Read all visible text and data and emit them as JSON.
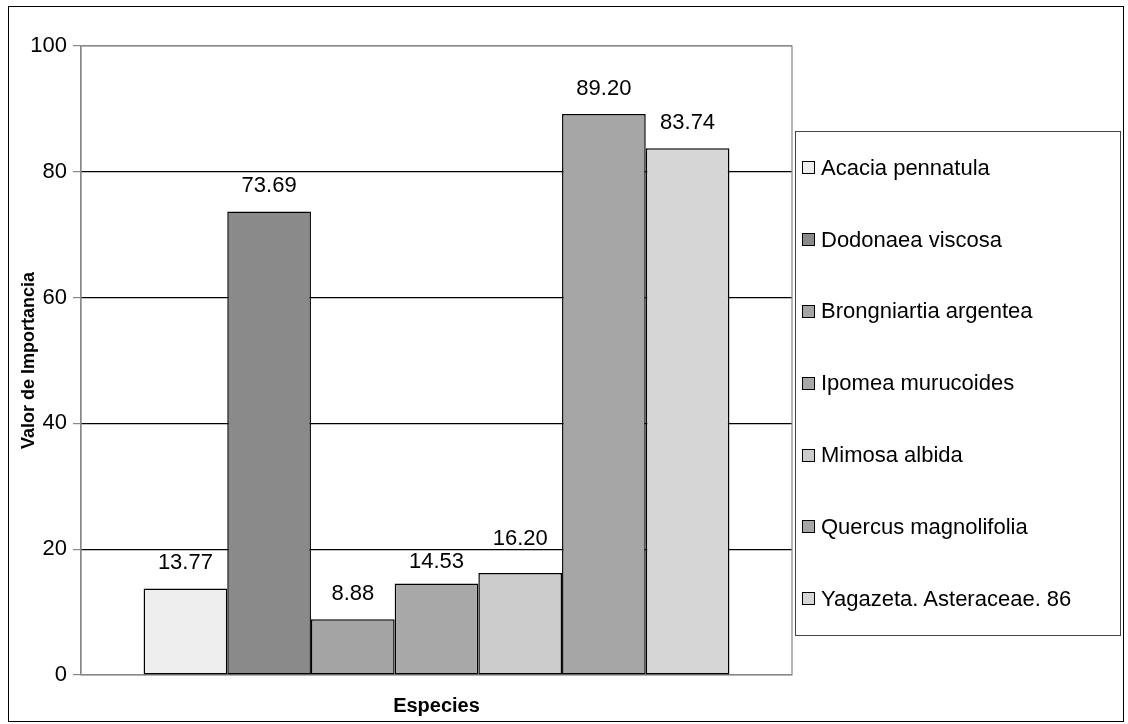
{
  "chart_data": {
    "type": "bar",
    "xlabel": "Especies",
    "ylabel": "Valor de Importancia",
    "categories": [
      null
    ],
    "series": [
      {
        "name": "Acacia pennatula",
        "color": "#eeeeee",
        "values": [
          13.77
        ],
        "value_labels": [
          "13.77"
        ]
      },
      {
        "name": "Dodonaea viscosa",
        "color": "#8a8a8a",
        "values": [
          73.69
        ],
        "value_labels": [
          "73.69"
        ]
      },
      {
        "name": "Brongniartia argentea",
        "color": "#a4a4a4",
        "values": [
          8.88
        ],
        "value_labels": [
          "8.88"
        ]
      },
      {
        "name": "Ipomea murucoides",
        "color": "#a8a8a8",
        "values": [
          14.53
        ],
        "value_labels": [
          "14.53"
        ]
      },
      {
        "name": "Mimosa albida",
        "color": "#cccccc",
        "values": [
          16.2
        ],
        "value_labels": [
          "16.20"
        ]
      },
      {
        "name": "Quercus magnolifolia",
        "color": "#a6a6a6",
        "values": [
          89.2
        ],
        "value_labels": [
          "89.20"
        ]
      },
      {
        "name": "Yagazeta. Asteraceae. 86",
        "color": "#d6d6d6",
        "values": [
          83.74
        ],
        "value_labels": [
          "83.74"
        ]
      }
    ],
    "ylim": [
      0,
      100
    ],
    "yticks": [
      0,
      20,
      40,
      60,
      80,
      100
    ],
    "grid": "y",
    "legend": "right"
  }
}
